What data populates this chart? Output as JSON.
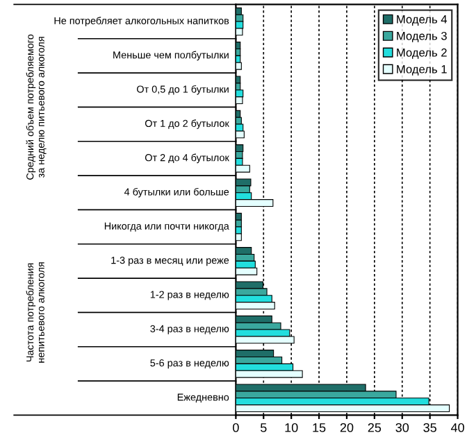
{
  "chart_data": {
    "type": "bar",
    "orientation": "horizontal",
    "categories": [
      "Не потребляет алкогольных напитков",
      "Меньше чем полбутылки",
      "От 0,5 до 1 бутылки",
      "От 1 до 2 бутылок",
      "От 2 до 4 бутылок",
      "4 бутылки или больше",
      "Никогда или почти никогда",
      "1-3 раз в месяц или реже",
      "1-2 раз в неделю",
      "3-4 раз в неделю",
      "5-6 раз в неделю",
      "Ежедневно"
    ],
    "series": [
      {
        "name": "Модель 4",
        "color": "#1f6e68",
        "values": [
          1.0,
          0.8,
          0.8,
          0.8,
          1.3,
          2.7,
          1.0,
          2.8,
          4.9,
          6.5,
          6.8,
          23.4
        ]
      },
      {
        "name": "Модель 3",
        "color": "#3aa89e",
        "values": [
          1.3,
          0.8,
          0.8,
          1.0,
          1.2,
          2.5,
          1.0,
          3.3,
          5.6,
          8.1,
          8.3,
          28.9
        ]
      },
      {
        "name": "Модель 2",
        "color": "#22dede",
        "values": [
          1.3,
          0.8,
          1.3,
          1.3,
          1.2,
          2.8,
          1.0,
          3.5,
          6.5,
          9.7,
          10.3,
          34.8
        ]
      },
      {
        "name": "Модель 1",
        "color": "#e4ffff",
        "values": [
          1.2,
          1.0,
          1.2,
          1.5,
          2.5,
          6.7,
          1.0,
          3.8,
          7.0,
          10.5,
          12.0,
          38.5
        ]
      }
    ],
    "xlim": [
      0,
      40
    ],
    "xticks": [
      0,
      5,
      10,
      15,
      20,
      25,
      30,
      35,
      40
    ],
    "grid": "x",
    "legend": "top right",
    "annotations": [
      "Средний объем потребляемого за неделю питьевого алкоголя",
      "Частота потребления непитьевого алкоголя"
    ]
  }
}
